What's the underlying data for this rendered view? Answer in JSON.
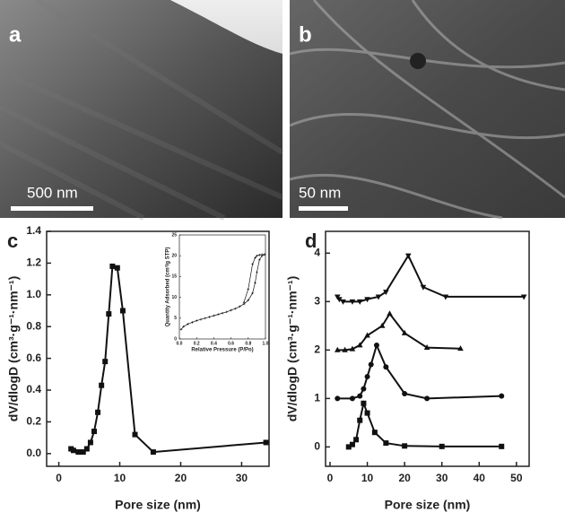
{
  "images": [
    {
      "label": "a",
      "scale": "500 nm"
    },
    {
      "label": "b",
      "scale": "50 nm"
    }
  ],
  "chart_data": [
    {
      "type": "line",
      "panel_label": "c",
      "xlabel": "Pore size (nm)",
      "ylabel": "dV/dlogD (cm³·g⁻¹·nm⁻¹)",
      "xlim": [
        -2,
        34.5
      ],
      "ylim": [
        -0.08,
        1.4
      ],
      "xticks": [
        0,
        10,
        20,
        30
      ],
      "yticks": [
        {
          "value": 0,
          "label": "0.0"
        },
        {
          "value": 0.2,
          "label": "0.2"
        },
        {
          "value": 0.4,
          "label": "0.4"
        },
        {
          "value": 0.6,
          "label": "0.6"
        },
        {
          "value": 0.8,
          "label": "0.8"
        },
        {
          "value": 1,
          "label": "1.0"
        },
        {
          "value": 1.2,
          "label": "1.2"
        },
        {
          "value": 1.4,
          "label": "1.4"
        }
      ],
      "series": [
        {
          "color": "#111",
          "marker": "square",
          "x": [
            2,
            2.4,
            3.2,
            4,
            4.6,
            5.2,
            5.8,
            6.4,
            7,
            7.6,
            8.2,
            8.8,
            9.6,
            10.5,
            12.5,
            15.5,
            34
          ],
          "values": [
            0.03,
            0.02,
            0.01,
            0.01,
            0.03,
            0.07,
            0.14,
            0.26,
            0.43,
            0.58,
            0.88,
            1.18,
            1.17,
            0.9,
            0.12,
            0.01,
            0.07
          ]
        }
      ]
    },
    {
      "type": "line",
      "inset": true,
      "xlabel": "Relative Pressure (P/Po)",
      "ylabel": "Quantity Adsorbed (cm³/g STP)",
      "xlim": [
        0,
        1
      ],
      "ylim": [
        0,
        25
      ],
      "xticks": [
        {
          "value": 0,
          "label": "0.0"
        },
        {
          "value": 0.2,
          "label": "0.2"
        },
        {
          "value": 0.4,
          "label": "0.4"
        },
        {
          "value": 0.6,
          "label": "0.6"
        },
        {
          "value": 0.8,
          "label": "0.8"
        },
        {
          "value": 1,
          "label": "1.0"
        }
      ],
      "yticks": [
        0,
        5,
        10,
        15,
        20,
        25
      ],
      "x": [
        0.02,
        0.05,
        0.1,
        0.15,
        0.2,
        0.25,
        0.3,
        0.35,
        0.4,
        0.45,
        0.5,
        0.55,
        0.6,
        0.65,
        0.7,
        0.75,
        0.8,
        0.85,
        0.88,
        0.9,
        0.93,
        0.96,
        0.99
      ],
      "series": [
        {
          "color": "#111",
          "marker": "plus",
          "values": [
            2.3,
            3.0,
            3.6,
            4.0,
            4.4,
            4.7,
            5.0,
            5.3,
            5.6,
            5.9,
            6.2,
            6.5,
            6.9,
            7.3,
            7.8,
            8.4,
            9.3,
            11,
            13.5,
            16,
            19,
            20,
            20.3
          ]
        },
        {
          "color": "#111",
          "marker": "plus",
          "values": [
            null,
            null,
            null,
            null,
            null,
            null,
            null,
            null,
            null,
            null,
            null,
            null,
            null,
            null,
            null,
            8.8,
            12,
            18,
            19.5,
            20,
            20.2,
            20.3,
            20.3
          ]
        }
      ]
    },
    {
      "type": "line",
      "panel_label": "d",
      "xlabel": "Pore size (nm)",
      "ylabel": "dV/dlogD (cm³·g⁻¹·nm⁻¹)",
      "xlim": [
        -1.2,
        53.4
      ],
      "ylim": [
        -0.4,
        4.45
      ],
      "xticks": [
        0,
        10,
        20,
        30,
        40,
        50
      ],
      "yticks": [
        0,
        1,
        2,
        3,
        4
      ],
      "series": [
        {
          "color": "#111",
          "marker": "square",
          "x": [
            5,
            6,
            7,
            8,
            9,
            10,
            12,
            15,
            20,
            30,
            46
          ],
          "values": [
            0,
            0.05,
            0.15,
            0.55,
            0.9,
            0.7,
            0.3,
            0.08,
            0.02,
            0.01,
            0.01
          ]
        },
        {
          "color": "#111",
          "marker": "circle",
          "x": [
            2,
            6,
            8,
            9,
            10,
            11,
            12.5,
            15,
            20,
            26,
            46
          ],
          "values": [
            1,
            1,
            1.05,
            1.2,
            1.45,
            1.7,
            2.1,
            1.65,
            1.1,
            1.0,
            1.05
          ]
        },
        {
          "color": "#111",
          "marker": "triangle-up",
          "x": [
            2,
            4,
            6,
            8,
            10,
            14,
            16,
            20,
            26,
            35
          ],
          "values": [
            2,
            2,
            2.02,
            2.1,
            2.3,
            2.5,
            2.75,
            2.35,
            2.05,
            2.03
          ]
        },
        {
          "color": "#111",
          "marker": "triangle-down",
          "x": [
            2,
            2.5,
            3.5,
            6,
            8,
            10,
            13,
            15,
            21,
            25,
            31,
            52
          ],
          "values": [
            3.1,
            3.05,
            3.0,
            3.0,
            3.0,
            3.05,
            3.1,
            3.2,
            3.95,
            3.3,
            3.1,
            3.1
          ]
        }
      ]
    }
  ]
}
